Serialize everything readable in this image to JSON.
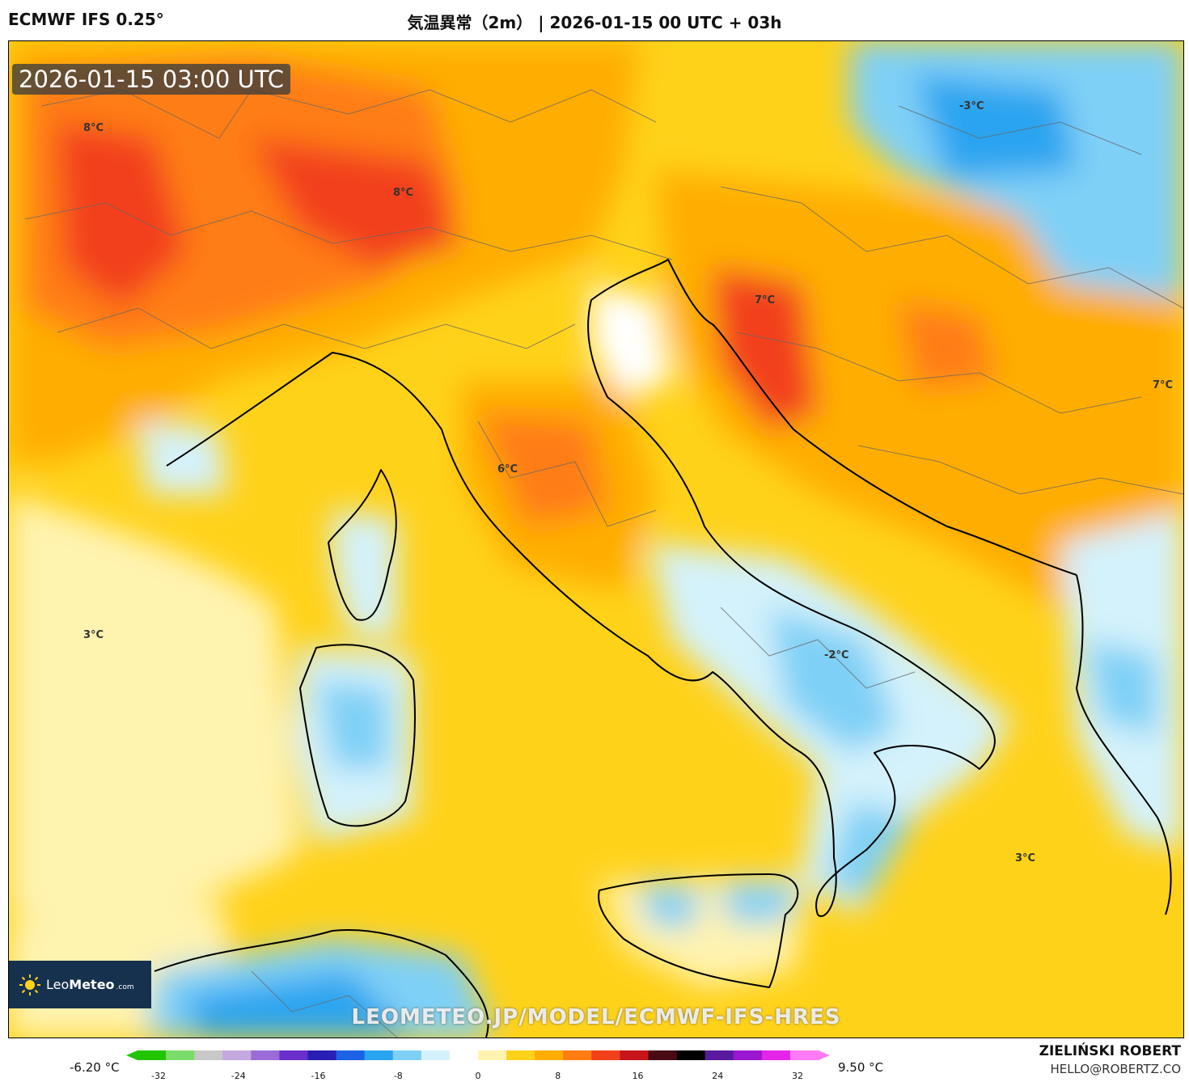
{
  "header": {
    "model": "ECMWF IFS 0.25°",
    "title": "気温異常（2m） | 2026-01-15 00 UTC + 03h"
  },
  "map": {
    "timestamp": "2026-01-15 03:00 UTC",
    "labels": [
      "8°C",
      "8°C",
      "7°C",
      "7°C",
      "-3°C",
      "6°C",
      "3°C",
      "-2°C",
      "3°C"
    ],
    "url": "LEOMETEO.JP/MODEL/ECMWF-IFS-HRES",
    "logo": {
      "brand_light": "Leo",
      "brand_bold": "Meteo",
      "domain": ".com"
    }
  },
  "scale": {
    "min_label": "-6.20 °C",
    "max_label": "9.50 °C",
    "ticks": [
      "-32",
      "-24",
      "-16",
      "-8",
      "0",
      "8",
      "16",
      "24",
      "32"
    ],
    "colors": [
      "#22c400",
      "#7cdc6a",
      "#c8c8c8",
      "#c4a8e0",
      "#9b6bd8",
      "#6a2ecb",
      "#2a1fb4",
      "#1b62e6",
      "#2aa4f0",
      "#7fd0f6",
      "#d4f2fb",
      "#ffffff",
      "#fff3b0",
      "#ffd21a",
      "#ffad00",
      "#ff7d12",
      "#f2401a",
      "#c7151a",
      "#4a0a14",
      "#000000",
      "#5a1aa0",
      "#9b17cf",
      "#e424e8",
      "#ff7af5"
    ]
  },
  "credit": {
    "author": "ZIELIŃSKI ROBERT",
    "email": "HELLO@ROBERTZ.CO"
  }
}
